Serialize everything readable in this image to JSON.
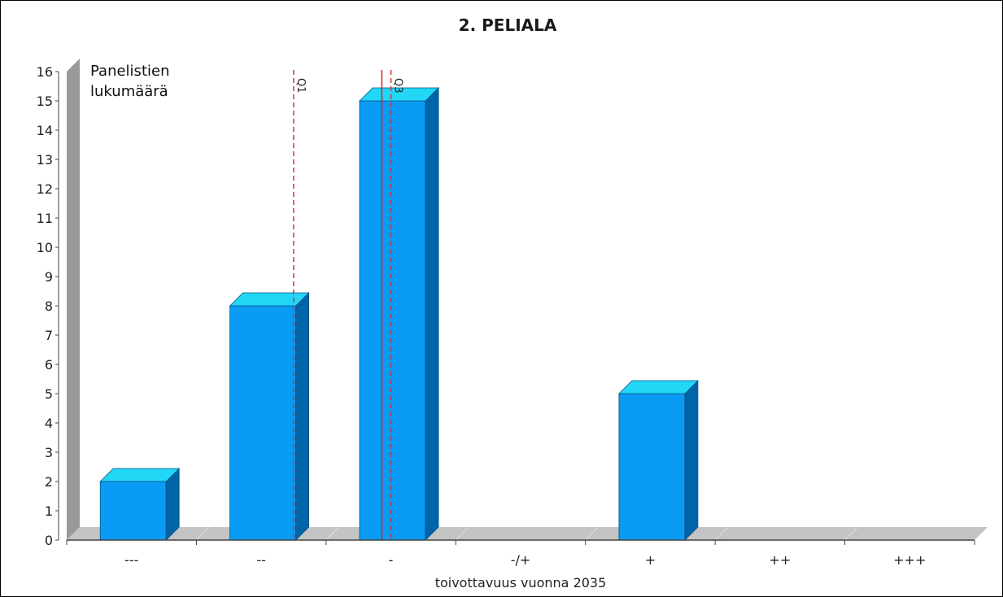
{
  "chart_data": {
    "type": "bar",
    "title": "2. PELIALA",
    "xlabel": "toivottavuus vuonna 2035",
    "ylabel_lines": [
      "Panelistien",
      "lukumäärä"
    ],
    "categories": [
      "---",
      "--",
      "-",
      "-/+",
      "+",
      "++",
      "+++"
    ],
    "values": [
      2,
      8,
      15,
      0,
      5,
      0,
      0
    ],
    "ylim": [
      0,
      16
    ],
    "yticks": [
      "0",
      "1",
      "2",
      "3",
      "4",
      "5",
      "6",
      "7",
      "8",
      "9",
      "10",
      "11",
      "12",
      "13",
      "14",
      "15",
      "16"
    ],
    "grid": false,
    "three_d": true,
    "markers": [
      {
        "label": "Q1",
        "x": 1.25,
        "style": "dashed",
        "color": "#e03030"
      },
      {
        "label": "",
        "x": 1.93,
        "style": "solid",
        "color": "#e02020"
      },
      {
        "label": "Q3",
        "x": 2.0,
        "style": "dashed",
        "color": "#e03030"
      }
    ],
    "colors": {
      "bar_front": "#0a9bf5",
      "bar_top": "#22d6f6",
      "bar_side": "#0064a8",
      "wall": "#999999",
      "floor": "#c4c4c4"
    }
  }
}
